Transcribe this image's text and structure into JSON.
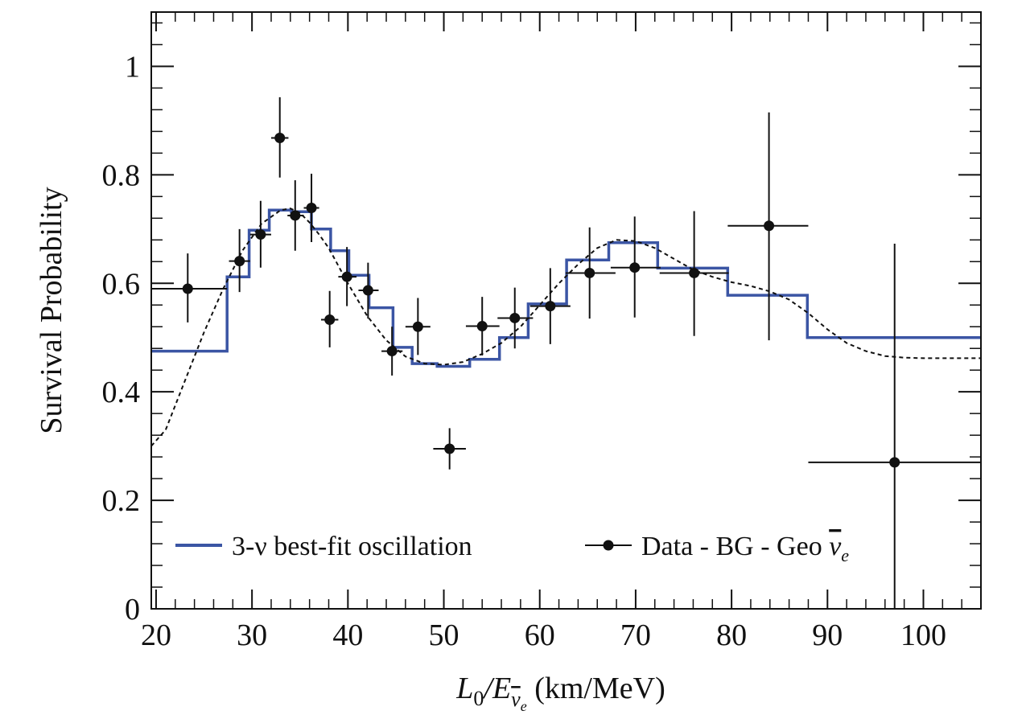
{
  "chart_data": {
    "type": "line",
    "xlabel": {
      "main": "L",
      "sub": "0",
      "mid": "/E",
      "nu": "ν",
      "nu_sub": "e",
      "unit": " (km/MeV)"
    },
    "ylabel": "Survival Probability",
    "xlim": [
      19.5,
      106
    ],
    "ylim": [
      0,
      1.1
    ],
    "x_ticks": [
      20,
      30,
      40,
      50,
      60,
      70,
      80,
      90,
      100
    ],
    "x_tick_labels": [
      "20",
      "30",
      "40",
      "50",
      "60",
      "70",
      "80",
      "90",
      "100"
    ],
    "y_ticks": [
      0,
      0.2,
      0.4,
      0.6,
      0.8,
      1
    ],
    "y_tick_labels": [
      "0",
      "0.2",
      "0.4",
      "0.6",
      "0.8",
      "1"
    ],
    "grid": false,
    "legend": {
      "placement": "bottom",
      "series_label": "3-ν best-fit oscillation",
      "data_label_main": "Data - BG - Geo ",
      "data_label_nu": "ν",
      "data_label_sub": "e"
    },
    "colors": {
      "fit": "#3b55a4",
      "data": "#111111",
      "curve": "#111111"
    },
    "best_fit_histogram": {
      "edges": [
        19.5,
        27.4,
        29.7,
        31.8,
        34.1,
        36.2,
        38.2,
        40.1,
        42.2,
        44.7,
        46.7,
        49.3,
        52.7,
        55.8,
        58.8,
        62.8,
        67.2,
        72.3,
        79.6,
        87.9,
        106
      ],
      "values": [
        0.475,
        0.612,
        0.698,
        0.735,
        0.732,
        0.7,
        0.66,
        0.615,
        0.555,
        0.482,
        0.452,
        0.447,
        0.46,
        0.5,
        0.562,
        0.643,
        0.675,
        0.628,
        0.578,
        0.5
      ]
    },
    "expected_curve": {
      "x": [
        19.5,
        21,
        23,
        25,
        27,
        29,
        31,
        33,
        34,
        35,
        36,
        37,
        38,
        40,
        42,
        44,
        46,
        48,
        50,
        52,
        54,
        56,
        58,
        60,
        62,
        64,
        66,
        68,
        70,
        72,
        74,
        76,
        78,
        80,
        82,
        84,
        86,
        88,
        90,
        92,
        94,
        96,
        98,
        100,
        102,
        104,
        106
      ],
      "y": [
        0.3,
        0.33,
        0.42,
        0.51,
        0.59,
        0.66,
        0.71,
        0.735,
        0.738,
        0.73,
        0.712,
        0.69,
        0.665,
        0.6,
        0.54,
        0.495,
        0.465,
        0.452,
        0.45,
        0.455,
        0.47,
        0.49,
        0.52,
        0.56,
        0.6,
        0.635,
        0.665,
        0.68,
        0.678,
        0.665,
        0.645,
        0.625,
        0.612,
        0.602,
        0.595,
        0.585,
        0.57,
        0.545,
        0.515,
        0.49,
        0.475,
        0.466,
        0.463,
        0.462,
        0.462,
        0.462,
        0.462
      ]
    },
    "data_points": [
      {
        "x": 23.3,
        "y": 0.59,
        "xlo": 19.5,
        "xhi": 27.4,
        "ylo": 0.528,
        "yhi": 0.655
      },
      {
        "x": 28.7,
        "y": 0.641,
        "xlo": 27.6,
        "xhi": 29.8,
        "ylo": 0.584,
        "yhi": 0.7
      },
      {
        "x": 30.9,
        "y": 0.69,
        "xlo": 29.8,
        "xhi": 32.0,
        "ylo": 0.629,
        "yhi": 0.752
      },
      {
        "x": 32.9,
        "y": 0.868,
        "xlo": 32.0,
        "xhi": 33.8,
        "ylo": 0.795,
        "yhi": 0.943
      },
      {
        "x": 34.5,
        "y": 0.725,
        "xlo": 33.7,
        "xhi": 35.4,
        "ylo": 0.66,
        "yhi": 0.79
      },
      {
        "x": 36.2,
        "y": 0.739,
        "xlo": 35.4,
        "xhi": 37.0,
        "ylo": 0.676,
        "yhi": 0.802
      },
      {
        "x": 38.1,
        "y": 0.533,
        "xlo": 37.2,
        "xhi": 39.0,
        "ylo": 0.482,
        "yhi": 0.586
      },
      {
        "x": 39.9,
        "y": 0.612,
        "xlo": 39.0,
        "xhi": 40.9,
        "ylo": 0.558,
        "yhi": 0.667
      },
      {
        "x": 42.1,
        "y": 0.587,
        "xlo": 41.1,
        "xhi": 43.2,
        "ylo": 0.535,
        "yhi": 0.638
      },
      {
        "x": 44.6,
        "y": 0.475,
        "xlo": 43.5,
        "xhi": 45.7,
        "ylo": 0.43,
        "yhi": 0.52
      },
      {
        "x": 47.3,
        "y": 0.52,
        "xlo": 46.0,
        "xhi": 48.6,
        "ylo": 0.468,
        "yhi": 0.573
      },
      {
        "x": 50.6,
        "y": 0.295,
        "xlo": 48.9,
        "xhi": 52.3,
        "ylo": 0.257,
        "yhi": 0.333
      },
      {
        "x": 54.0,
        "y": 0.521,
        "xlo": 52.3,
        "xhi": 55.8,
        "ylo": 0.467,
        "yhi": 0.575
      },
      {
        "x": 57.4,
        "y": 0.536,
        "xlo": 55.6,
        "xhi": 59.3,
        "ylo": 0.48,
        "yhi": 0.592
      },
      {
        "x": 61.1,
        "y": 0.558,
        "xlo": 59.0,
        "xhi": 63.2,
        "ylo": 0.488,
        "yhi": 0.628
      },
      {
        "x": 65.2,
        "y": 0.619,
        "xlo": 62.7,
        "xhi": 67.9,
        "ylo": 0.535,
        "yhi": 0.703
      },
      {
        "x": 69.9,
        "y": 0.629,
        "xlo": 67.4,
        "xhi": 72.6,
        "ylo": 0.537,
        "yhi": 0.723
      },
      {
        "x": 76.1,
        "y": 0.619,
        "xlo": 72.5,
        "xhi": 79.7,
        "ylo": 0.503,
        "yhi": 0.733
      },
      {
        "x": 83.9,
        "y": 0.706,
        "xlo": 79.6,
        "xhi": 88.0,
        "ylo": 0.495,
        "yhi": 0.915
      },
      {
        "x": 97.0,
        "y": 0.27,
        "xlo": 88.0,
        "xhi": 106.0,
        "ylo": 0.0,
        "yhi": 0.673
      }
    ]
  }
}
